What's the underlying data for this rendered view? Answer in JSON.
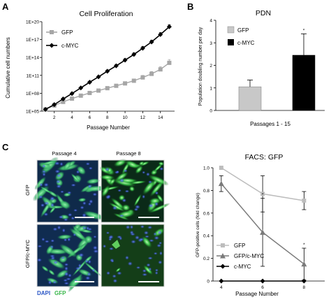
{
  "panels": {
    "a": "A",
    "b": "B",
    "c": "C"
  },
  "colors": {
    "gfp_gray": "#a6a6a6",
    "cmyc_black": "#000000",
    "gfpcmyc_gray": "#7a7a7a",
    "dapi_blue": "#2a56c6",
    "gfp_green": "#38b64a"
  },
  "chart_data": [
    {
      "type": "line",
      "title": "Cell Proliferation",
      "xlabel": "Passage Number",
      "ylabel": "Cumulative cell numbers",
      "ylog": true,
      "xlim": [
        0.6,
        15.6
      ],
      "ylim": [
        100000,
        100000000000000000000
      ],
      "x_ticks": [
        2,
        4,
        6,
        8,
        10,
        12,
        14
      ],
      "y_ticks": [
        "1E+05",
        "1E+08",
        "1E+11",
        "1E+14",
        "1E+17",
        "1E+20"
      ],
      "y_tick_values": [
        5,
        8,
        11,
        14,
        17,
        20
      ],
      "legend_placement": "top-left",
      "series": [
        {
          "name": "GFP",
          "color": "#a6a6a6",
          "marker": "square",
          "x": [
            1,
            2,
            3,
            4,
            5,
            6,
            7,
            8,
            9,
            10,
            11,
            12,
            13,
            14,
            15
          ],
          "log10_y": [
            5.3,
            5.95,
            6.55,
            7.1,
            7.6,
            8.05,
            8.45,
            8.85,
            9.25,
            9.65,
            10.1,
            10.65,
            11.25,
            12.0,
            13.1
          ],
          "err_log10": [
            0.05,
            0.08,
            0.1,
            0.12,
            0.14,
            0.16,
            0.18,
            0.2,
            0.22,
            0.26,
            0.3,
            0.35,
            0.4,
            0.45,
            0.55
          ]
        },
        {
          "name": "c-MYC",
          "color": "#000000",
          "marker": "diamond",
          "x": [
            1,
            2,
            3,
            4,
            5,
            6,
            7,
            8,
            9,
            10,
            11,
            12,
            13,
            14,
            15
          ],
          "log10_y": [
            5.3,
            6.1,
            7.05,
            7.95,
            8.9,
            9.85,
            10.75,
            11.7,
            12.6,
            13.55,
            14.5,
            15.55,
            16.6,
            17.85,
            19.15
          ],
          "err_log10": [
            0.05,
            0.08,
            0.1,
            0.12,
            0.14,
            0.16,
            0.18,
            0.2,
            0.22,
            0.24,
            0.26,
            0.28,
            0.3,
            0.32,
            0.35
          ]
        }
      ]
    },
    {
      "type": "bar",
      "title": "PDN",
      "xlabel": "Passages 1 - 15",
      "ylabel": "Population doubling  number per day",
      "ylim": [
        0,
        4
      ],
      "y_ticks": [
        0,
        1,
        2,
        3,
        4
      ],
      "categories": [
        "GFP",
        "c-MYC"
      ],
      "values": [
        1.05,
        2.45
      ],
      "errors": [
        0.3,
        0.95
      ],
      "colors": [
        "#c8c8c8",
        "#000000"
      ],
      "annotations": [
        "",
        "*"
      ],
      "legend_placement": "top-left"
    },
    {
      "type": "line",
      "title": "FACS: GFP",
      "xlabel": "Passage Number",
      "ylabel": "GFP-positive cells (fold change)",
      "xlim": [
        3.6,
        9
      ],
      "ylim": [
        0,
        1
      ],
      "x_ticks": [
        4,
        6,
        8
      ],
      "y_ticks": [
        "0",
        "0.2",
        "0.4",
        "0.6",
        "0.8",
        "1.0"
      ],
      "y_tick_values": [
        0,
        0.2,
        0.4,
        0.6,
        0.8,
        1.0
      ],
      "legend_placement": "bottom-left",
      "series": [
        {
          "name": "GFP",
          "color": "#bdbdbd",
          "marker": "square",
          "x": [
            4,
            6,
            8
          ],
          "y": [
            1.0,
            0.77,
            0.71
          ],
          "err": [
            0,
            0.16,
            0.08
          ],
          "annot": [
            "",
            "",
            ""
          ]
        },
        {
          "name": "GFP/c-MYC",
          "color": "#7a7a7a",
          "marker": "triangle",
          "x": [
            4,
            6,
            8
          ],
          "y": [
            0.86,
            0.43,
            0.15
          ],
          "err": [
            0.07,
            0.3,
            0.14
          ],
          "annot": [
            "",
            "*",
            "*"
          ]
        },
        {
          "name": "c-MYC",
          "color": "#000000",
          "marker": "diamond",
          "x": [
            4,
            6,
            8
          ],
          "y": [
            0.0,
            0.0,
            0.0
          ],
          "err": [
            0,
            0,
            0
          ],
          "annot": [
            "",
            "",
            ""
          ]
        }
      ]
    }
  ],
  "micrographs": {
    "col_labels": [
      "Passage 4",
      "Passage 8"
    ],
    "row_labels": [
      "GFP",
      "GFP/c-MYC"
    ],
    "stain_legend": {
      "dapi": "DAPI",
      "gfp": "GFP"
    }
  }
}
